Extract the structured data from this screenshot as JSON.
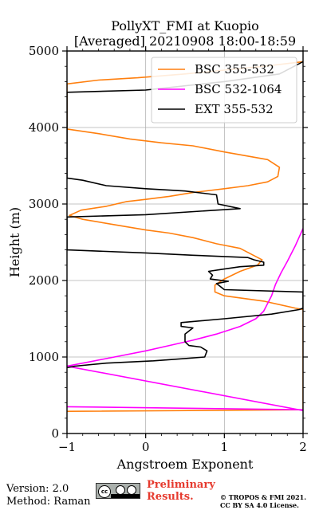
{
  "chart_data": {
    "type": "line",
    "title": [
      "PollyXT_FMI at Kuopio",
      "[Averaged] 20210908 18:00-18:59"
    ],
    "xlabel": "Angstroem Exponent",
    "ylabel": "Height (m)",
    "xlim": [
      -1,
      2
    ],
    "ylim": [
      0,
      5000
    ],
    "x_ticks": [
      -1,
      0,
      1,
      2
    ],
    "y_ticks": [
      0,
      1000,
      2000,
      3000,
      4000,
      5000
    ],
    "grid": true,
    "legend_position": "top-right",
    "series": [
      {
        "name": "BSC 355-532",
        "color": "#ff7f0e",
        "points": [
          [
            -1.0,
            290
          ],
          [
            2.0,
            310
          ],
          [
            2.0,
            1620
          ],
          [
            1.9,
            1640
          ],
          [
            1.5,
            1730
          ],
          [
            1.0,
            1800
          ],
          [
            0.88,
            1850
          ],
          [
            0.88,
            1940
          ],
          [
            1.0,
            2020
          ],
          [
            1.2,
            2120
          ],
          [
            1.42,
            2200
          ],
          [
            1.48,
            2270
          ],
          [
            1.2,
            2420
          ],
          [
            0.9,
            2480
          ],
          [
            0.6,
            2560
          ],
          [
            0.3,
            2620
          ],
          [
            0.0,
            2660
          ],
          [
            -0.4,
            2730
          ],
          [
            -0.8,
            2800
          ],
          [
            -0.97,
            2850
          ],
          [
            -0.82,
            2920
          ],
          [
            -0.5,
            2970
          ],
          [
            -0.25,
            3030
          ],
          [
            0.0,
            3060
          ],
          [
            0.3,
            3100
          ],
          [
            0.6,
            3150
          ],
          [
            1.0,
            3200
          ],
          [
            1.3,
            3240
          ],
          [
            1.55,
            3290
          ],
          [
            1.68,
            3360
          ],
          [
            1.7,
            3480
          ],
          [
            1.55,
            3580
          ],
          [
            1.0,
            3680
          ],
          [
            0.6,
            3760
          ],
          [
            0.2,
            3800
          ],
          [
            -0.2,
            3850
          ],
          [
            -0.6,
            3920
          ],
          [
            -1.0,
            3980
          ],
          [
            -1.0,
            4570
          ],
          [
            -0.6,
            4620
          ],
          [
            -0.1,
            4650
          ],
          [
            0.5,
            4700
          ],
          [
            1.0,
            4750
          ],
          [
            1.5,
            4800
          ],
          [
            2.0,
            4860
          ]
        ]
      },
      {
        "name": "BSC 532-1064",
        "color": "#ff00ff",
        "points": [
          [
            -1.0,
            350
          ],
          [
            2.0,
            310
          ],
          [
            2.0,
            300
          ],
          [
            -1.0,
            880
          ],
          [
            -0.7,
            940
          ],
          [
            -0.3,
            1020
          ],
          [
            0.0,
            1080
          ],
          [
            0.3,
            1150
          ],
          [
            0.6,
            1220
          ],
          [
            0.9,
            1300
          ],
          [
            1.2,
            1400
          ],
          [
            1.4,
            1500
          ],
          [
            1.5,
            1600
          ],
          [
            1.55,
            1700
          ],
          [
            1.6,
            1800
          ],
          [
            1.65,
            1950
          ],
          [
            1.72,
            2100
          ],
          [
            1.8,
            2250
          ],
          [
            1.9,
            2450
          ],
          [
            2.0,
            2680
          ]
        ]
      },
      {
        "name": "EXT 355-532",
        "color": "#000000",
        "points": [
          [
            -1.0,
            860
          ],
          [
            -0.9,
            880
          ],
          [
            -0.5,
            920
          ],
          [
            0.1,
            950
          ],
          [
            0.5,
            980
          ],
          [
            0.75,
            1000
          ],
          [
            0.78,
            1080
          ],
          [
            0.7,
            1130
          ],
          [
            0.55,
            1150
          ],
          [
            0.5,
            1200
          ],
          [
            0.5,
            1300
          ],
          [
            0.6,
            1380
          ],
          [
            0.45,
            1400
          ],
          [
            0.45,
            1450
          ],
          [
            1.0,
            1500
          ],
          [
            1.6,
            1560
          ],
          [
            1.95,
            1620
          ],
          [
            2.0,
            1640
          ],
          [
            2.0,
            1850
          ],
          [
            1.0,
            1880
          ],
          [
            0.9,
            1960
          ],
          [
            1.05,
            1990
          ],
          [
            0.82,
            2020
          ],
          [
            0.85,
            2070
          ],
          [
            0.8,
            2120
          ],
          [
            1.0,
            2150
          ],
          [
            1.2,
            2180
          ],
          [
            1.5,
            2200
          ],
          [
            1.5,
            2240
          ],
          [
            1.38,
            2270
          ],
          [
            1.3,
            2300
          ],
          [
            0.6,
            2330
          ],
          [
            0.0,
            2360
          ],
          [
            -1.0,
            2400
          ],
          [
            -1.0,
            2830
          ],
          [
            0.0,
            2860
          ],
          [
            1.2,
            2940
          ],
          [
            0.92,
            3000
          ],
          [
            0.9,
            3120
          ],
          [
            0.5,
            3170
          ],
          [
            0.0,
            3200
          ],
          [
            -0.5,
            3240
          ],
          [
            -0.8,
            3310
          ],
          [
            -1.0,
            3340
          ],
          [
            -1.0,
            4460
          ],
          [
            0.0,
            4490
          ],
          [
            1.0,
            4600
          ],
          [
            1.7,
            4700
          ],
          [
            2.0,
            4860
          ]
        ]
      }
    ]
  },
  "footer": {
    "version": "Version: 2.0",
    "method": "Method: Raman",
    "preliminary_line1": "Preliminary",
    "preliminary_line2": "Results.",
    "copyright_line1": "© TROPOS & FMI 2021.",
    "copyright_line2": "CC BY SA 4.0 License.",
    "badge_cc": "cc"
  }
}
